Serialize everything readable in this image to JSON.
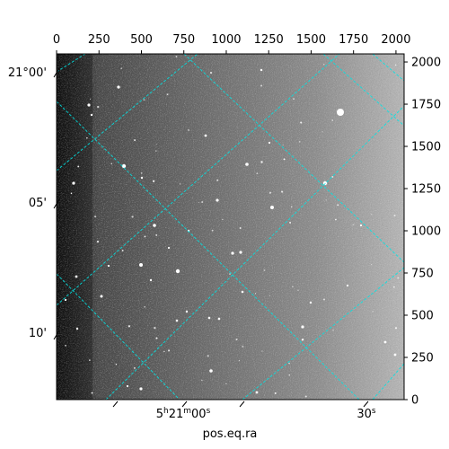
{
  "image": {
    "type": "astronomical-sky-image",
    "colormap": "grayscale",
    "pixel_extent": {
      "x": [
        0,
        2048
      ],
      "y": [
        0,
        2048
      ]
    },
    "grid_color": "#00e5e5",
    "background_gradient": "dark at left edge, brighter toward right edge"
  },
  "chart_data": {
    "type": "image",
    "title": "",
    "xlabel": "pos.eq.ra",
    "ylabel": "",
    "grid": true,
    "xlim": [
      0,
      2048
    ],
    "ylim": [
      0,
      2048
    ],
    "top_ticks": [
      "0",
      "250",
      "500",
      "750",
      "1000",
      "1250",
      "1500",
      "1750",
      "2000"
    ],
    "right_ticks": [
      "0",
      "250",
      "500",
      "750",
      "1000",
      "1250",
      "1500",
      "1750",
      "2000"
    ],
    "left_ticks": [
      "21°00'",
      "05'",
      "10'"
    ],
    "bottom_ticks": [
      {
        "h": "5",
        "hu": "h",
        "m": "21",
        "mu": "m",
        "s": "00",
        "su": "s"
      },
      {
        "s": "30",
        "su": "s"
      }
    ]
  }
}
